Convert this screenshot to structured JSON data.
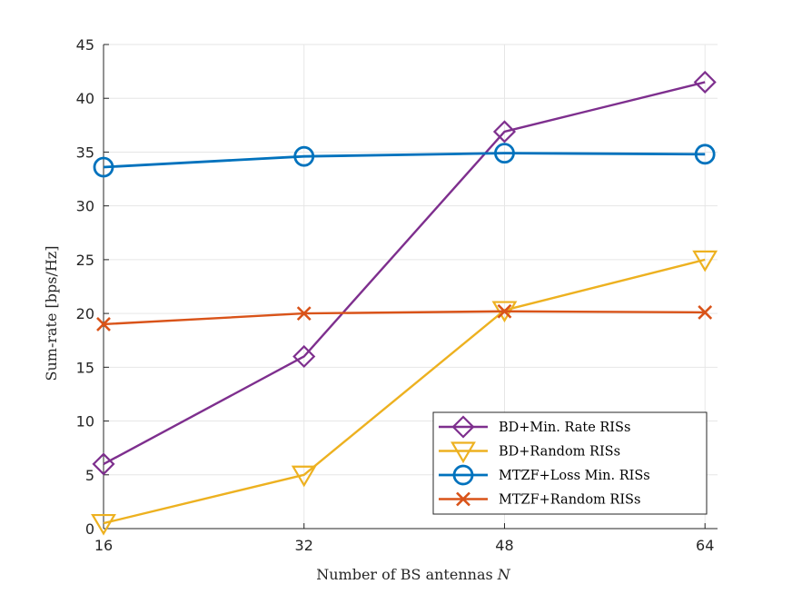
{
  "chart_data": {
    "type": "line",
    "title": "",
    "xlabel": "Number of BS antennas",
    "xlabel_symbol": "N",
    "ylabel": "Sum-rate [bps/Hz]",
    "x": [
      16,
      32,
      48,
      64
    ],
    "xticks": [
      16,
      32,
      48,
      64
    ],
    "xlim": [
      16,
      65
    ],
    "ylim": [
      0,
      45
    ],
    "yticks": [
      0,
      5,
      10,
      15,
      20,
      25,
      30,
      35,
      40,
      45
    ],
    "grid": true,
    "legend_position": "bottom-right",
    "series": [
      {
        "name": "BD+Min. Rate RISs",
        "values": [
          6.0,
          16.0,
          36.9,
          41.5
        ],
        "color": "#7E2F8E",
        "marker": "diamond"
      },
      {
        "name": "BD+Random RISs",
        "values": [
          0.5,
          5.0,
          20.3,
          25.0
        ],
        "color": "#EDB120",
        "marker": "triangle-down"
      },
      {
        "name": "MTZF+Loss Min. RISs",
        "values": [
          33.6,
          34.6,
          34.9,
          34.8
        ],
        "color": "#0072BD",
        "marker": "circle"
      },
      {
        "name": "MTZF+Random RISs",
        "values": [
          19.0,
          20.0,
          20.2,
          20.1
        ],
        "color": "#D95319",
        "marker": "x"
      }
    ]
  }
}
